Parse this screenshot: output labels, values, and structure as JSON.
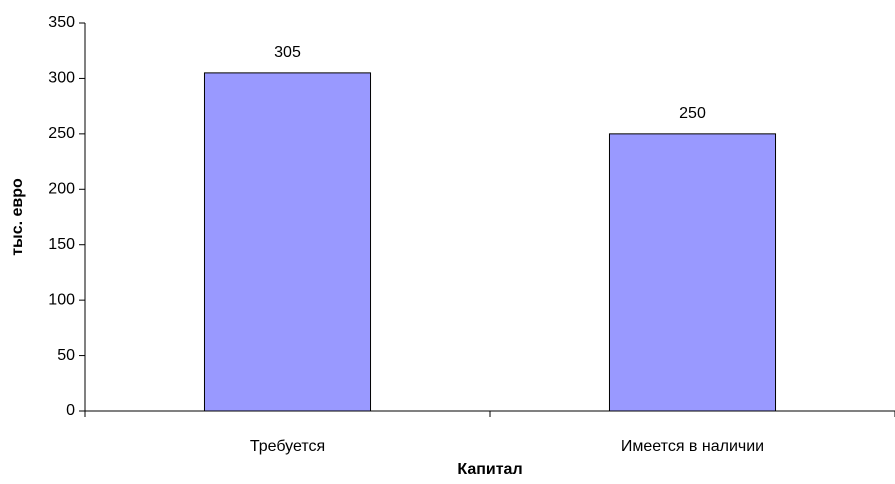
{
  "chart_data": {
    "type": "bar",
    "x_label": "Капитал",
    "y_label": "тыс. евро",
    "categories": [
      "Требуется",
      "Имеется в наличии"
    ],
    "values": [
      305,
      250
    ],
    "color": "#9999ff",
    "ylim": [
      0,
      350
    ],
    "yticks": [
      0,
      50,
      100,
      150,
      200,
      250,
      300,
      350
    ],
    "grid": false
  }
}
